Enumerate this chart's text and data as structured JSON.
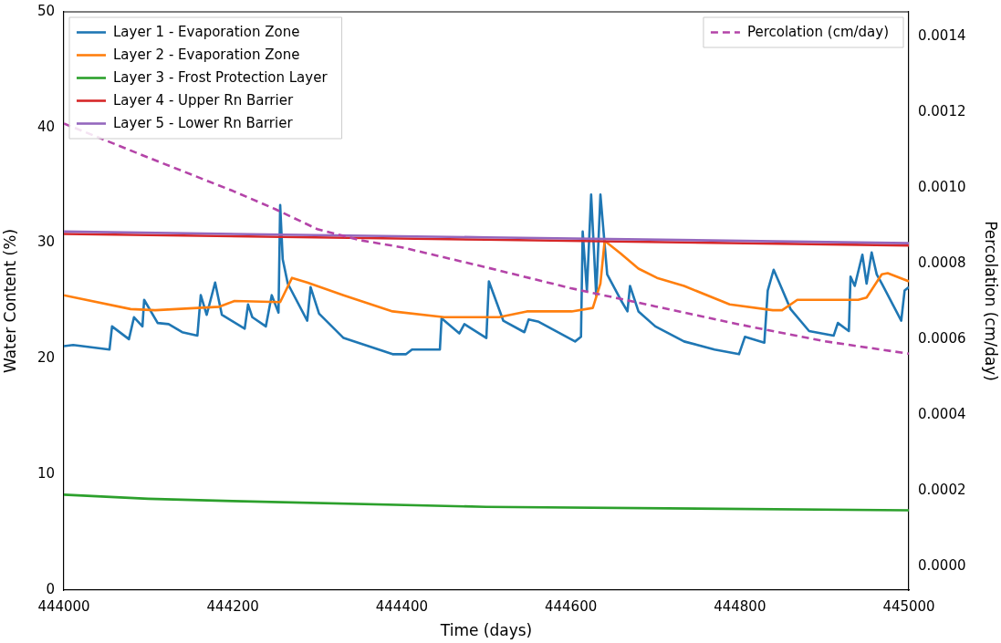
{
  "chart_data": {
    "type": "line",
    "xlabel": "Time (days)",
    "ylabel": "Water Content (%)",
    "y2label": "Percolation (cm/day)",
    "xlim": [
      444000,
      445000
    ],
    "xticks": [
      444000,
      444200,
      444400,
      444600,
      444800,
      445000
    ],
    "ylim": [
      0,
      50
    ],
    "yticks": [
      0,
      10,
      20,
      30,
      40,
      50
    ],
    "y2lim": [
      -6.25e-05,
      0.001465
    ],
    "y2ticks": [
      {
        "value": 0,
        "label": "0.0000"
      },
      {
        "value": 0.0002,
        "label": "0.0002"
      },
      {
        "value": 0.0004,
        "label": "0.0004"
      },
      {
        "value": 0.0006,
        "label": "0.0006"
      },
      {
        "value": 0.0008,
        "label": "0.0008"
      },
      {
        "value": 0.001,
        "label": "0.0010"
      },
      {
        "value": 0.0012,
        "label": "0.0012"
      },
      {
        "value": 0.0014,
        "label": "0.0014"
      }
    ],
    "grid": false,
    "legend": "top left",
    "marker": "none",
    "series": [
      {
        "name": "Layer 1 - Evaporation Zone",
        "color": "#1f77b4",
        "x": [
          444000,
          444011,
          444054,
          444057,
          444077,
          444083,
          444093,
          444095,
          444111,
          444124,
          444140,
          444158,
          444162,
          444169,
          444179,
          444187,
          444214,
          444218,
          444223,
          444239,
          444246,
          444254,
          444256,
          444259,
          444265,
          444288,
          444292,
          444302,
          444331,
          444389,
          444405,
          444412,
          444445,
          444447,
          444468,
          444474,
          444500,
          444503,
          444520,
          444545,
          444550,
          444562,
          444605,
          444612,
          444614,
          444619,
          444624,
          444630,
          444635,
          444643,
          444659,
          444667,
          444670,
          444680,
          444700,
          444734,
          444770,
          444799,
          444806,
          444829,
          444833,
          444840,
          444846,
          444860,
          444882,
          444911,
          444916,
          444929,
          444931,
          444936,
          444945,
          444950,
          444956,
          444962,
          444968,
          444991,
          444995,
          445000
        ],
        "values": [
          21.1,
          21.2,
          20.8,
          22.8,
          21.7,
          23.6,
          22.8,
          25.1,
          23.1,
          23.0,
          22.3,
          22.0,
          25.5,
          23.8,
          26.6,
          23.8,
          22.6,
          24.7,
          23.6,
          22.8,
          25.5,
          24.0,
          33.3,
          28.6,
          26.5,
          23.3,
          26.2,
          23.9,
          21.8,
          20.4,
          20.4,
          20.8,
          20.8,
          23.5,
          22.2,
          23.0,
          21.8,
          26.7,
          23.3,
          22.3,
          23.4,
          23.2,
          21.5,
          21.9,
          31.0,
          25.9,
          34.2,
          25.5,
          34.2,
          27.3,
          25.1,
          24.1,
          26.3,
          24.1,
          22.8,
          21.5,
          20.8,
          20.4,
          21.9,
          21.4,
          25.9,
          27.7,
          26.7,
          24.3,
          22.4,
          22.0,
          23.1,
          22.4,
          27.1,
          26.3,
          29.0,
          26.5,
          29.2,
          27.3,
          26.5,
          23.3,
          25.9,
          26.2
        ]
      },
      {
        "name": "Layer 2 - Evaporation Zone",
        "color": "#ff7f0e",
        "x": [
          444000,
          444079,
          444108,
          444184,
          444202,
          444256,
          444270,
          444288,
          444331,
          444389,
          444450,
          444515,
          444548,
          444601,
          444626,
          444635,
          444640,
          444659,
          444680,
          444702,
          444734,
          444788,
          444839,
          444850,
          444868,
          444940,
          444950,
          444968,
          444975,
          445000
        ],
        "values": [
          25.5,
          24.3,
          24.2,
          24.5,
          25.0,
          24.9,
          27.0,
          26.6,
          25.5,
          24.1,
          23.6,
          23.6,
          24.1,
          24.1,
          24.4,
          26.5,
          30.2,
          29.1,
          27.8,
          27.0,
          26.3,
          24.7,
          24.2,
          24.2,
          25.1,
          25.1,
          25.3,
          27.3,
          27.4,
          26.7
        ]
      },
      {
        "name": "Layer 3 - Frost Protection Layer",
        "color": "#2ca02c",
        "x": [
          444000,
          444100,
          444200,
          444500,
          445000
        ],
        "values": [
          8.25,
          7.9,
          7.7,
          7.2,
          6.9
        ]
      },
      {
        "name": "Layer 4 - Upper Rn Barrier",
        "color": "#d62728",
        "x": [
          444000,
          444500,
          445000
        ],
        "values": [
          30.8,
          30.3,
          29.8
        ]
      },
      {
        "name": "Layer 5 - Lower Rn Barrier",
        "color": "#9467bd",
        "x": [
          444000,
          444500,
          445000
        ],
        "values": [
          31.0,
          30.5,
          30.0
        ]
      },
      {
        "name": "Percolation (cm/day)",
        "color": "#b444a8",
        "axis": "y2",
        "line_style": "dashed",
        "x": [
          444000,
          444100,
          444200,
          444250,
          444300,
          444350,
          444400,
          444500,
          444600,
          444700,
          444800,
          444900,
          445000
        ],
        "values": [
          0.00117,
          0.00108,
          0.000992,
          0.000944,
          0.000891,
          0.000862,
          0.000843,
          0.00079,
          0.000735,
          0.000687,
          0.000639,
          0.000595,
          0.000562
        ]
      }
    ]
  }
}
